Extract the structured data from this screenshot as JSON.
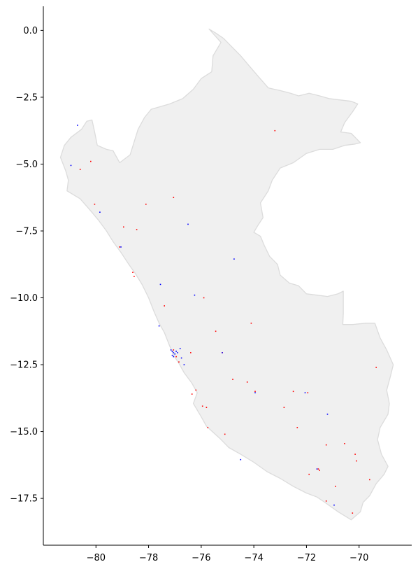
{
  "chart_data": {
    "type": "scatter",
    "title": "",
    "xlabel": "",
    "ylabel": "",
    "xlim": [
      -82.0,
      -68.0
    ],
    "ylim": [
      -19.25,
      0.9
    ],
    "x_ticks": [
      -80,
      -78,
      -76,
      -74,
      -72,
      -70
    ],
    "x_tick_labels": [
      "−80",
      "−78",
      "−76",
      "−74",
      "−72",
      "−70"
    ],
    "y_ticks": [
      0.0,
      -2.5,
      -5.0,
      -7.5,
      -10.0,
      -12.5,
      -15.0,
      -17.5
    ],
    "y_tick_labels": [
      "0.0",
      "−2.5",
      "−5.0",
      "−7.5",
      "−10.0",
      "−12.5",
      "−15.0",
      "−17.5"
    ],
    "grid": false,
    "colors": {
      "land_fill": "#f0f0f0",
      "land_edge": "#dcdcdc",
      "series_a": "#ff0000",
      "series_b": "#0000ff"
    },
    "outline": [
      [
        -75.7,
        0.05
      ],
      [
        -75.45,
        -0.1
      ],
      [
        -75.15,
        -0.3
      ],
      [
        -74.85,
        -0.6
      ],
      [
        -74.5,
        -0.95
      ],
      [
        -74.2,
        -1.3
      ],
      [
        -73.85,
        -1.7
      ],
      [
        -73.45,
        -2.15
      ],
      [
        -73.0,
        -2.25
      ],
      [
        -72.6,
        -2.35
      ],
      [
        -72.3,
        -2.45
      ],
      [
        -71.9,
        -2.35
      ],
      [
        -71.5,
        -2.45
      ],
      [
        -71.15,
        -2.55
      ],
      [
        -70.75,
        -2.6
      ],
      [
        -70.3,
        -2.65
      ],
      [
        -70.05,
        -2.75
      ],
      [
        -70.25,
        -3.05
      ],
      [
        -70.55,
        -3.45
      ],
      [
        -70.7,
        -3.8
      ],
      [
        -70.3,
        -3.85
      ],
      [
        -69.95,
        -4.2
      ],
      [
        -70.15,
        -4.25
      ],
      [
        -70.55,
        -4.3
      ],
      [
        -71.0,
        -4.45
      ],
      [
        -71.5,
        -4.45
      ],
      [
        -72.0,
        -4.6
      ],
      [
        -72.5,
        -4.95
      ],
      [
        -73.0,
        -5.15
      ],
      [
        -73.3,
        -5.6
      ],
      [
        -73.45,
        -6.0
      ],
      [
        -73.75,
        -6.45
      ],
      [
        -73.65,
        -7.0
      ],
      [
        -73.85,
        -7.3
      ],
      [
        -74.0,
        -7.55
      ],
      [
        -73.75,
        -7.7
      ],
      [
        -73.6,
        -8.05
      ],
      [
        -73.4,
        -8.45
      ],
      [
        -73.1,
        -8.75
      ],
      [
        -73.0,
        -9.15
      ],
      [
        -72.65,
        -9.45
      ],
      [
        -72.3,
        -9.55
      ],
      [
        -72.0,
        -9.85
      ],
      [
        -71.6,
        -9.9
      ],
      [
        -71.2,
        -9.95
      ],
      [
        -70.8,
        -9.85
      ],
      [
        -70.6,
        -9.75
      ],
      [
        -70.6,
        -10.1
      ],
      [
        -70.6,
        -10.6
      ],
      [
        -70.62,
        -11.0
      ],
      [
        -70.25,
        -11.0
      ],
      [
        -69.75,
        -10.95
      ],
      [
        -69.4,
        -10.95
      ],
      [
        -69.2,
        -11.5
      ],
      [
        -68.95,
        -11.95
      ],
      [
        -68.7,
        -12.5
      ],
      [
        -68.8,
        -12.9
      ],
      [
        -68.95,
        -13.45
      ],
      [
        -68.85,
        -13.95
      ],
      [
        -68.9,
        -14.35
      ],
      [
        -69.2,
        -14.85
      ],
      [
        -69.3,
        -15.3
      ],
      [
        -69.15,
        -15.85
      ],
      [
        -68.9,
        -16.3
      ],
      [
        -69.05,
        -16.6
      ],
      [
        -69.35,
        -16.95
      ],
      [
        -69.6,
        -17.4
      ],
      [
        -69.85,
        -17.65
      ],
      [
        -69.95,
        -18.0
      ],
      [
        -70.3,
        -18.3
      ],
      [
        -70.8,
        -18.0
      ],
      [
        -71.3,
        -17.65
      ],
      [
        -71.6,
        -17.45
      ],
      [
        -72.0,
        -17.3
      ],
      [
        -72.5,
        -17.05
      ],
      [
        -73.0,
        -16.75
      ],
      [
        -73.5,
        -16.5
      ],
      [
        -74.0,
        -16.15
      ],
      [
        -74.5,
        -15.85
      ],
      [
        -74.95,
        -15.6
      ],
      [
        -75.3,
        -15.25
      ],
      [
        -75.8,
        -14.8
      ],
      [
        -76.0,
        -14.45
      ],
      [
        -76.3,
        -13.95
      ],
      [
        -76.15,
        -13.55
      ],
      [
        -76.35,
        -13.2
      ],
      [
        -76.65,
        -12.8
      ],
      [
        -76.85,
        -12.45
      ],
      [
        -77.05,
        -12.15
      ],
      [
        -77.2,
        -11.8
      ],
      [
        -77.4,
        -11.3
      ],
      [
        -77.6,
        -10.95
      ],
      [
        -77.8,
        -10.5
      ],
      [
        -78.0,
        -10.0
      ],
      [
        -78.25,
        -9.5
      ],
      [
        -78.5,
        -9.1
      ],
      [
        -78.75,
        -8.75
      ],
      [
        -79.05,
        -8.3
      ],
      [
        -79.35,
        -7.9
      ],
      [
        -79.6,
        -7.5
      ],
      [
        -79.9,
        -7.1
      ],
      [
        -80.2,
        -6.75
      ],
      [
        -80.6,
        -6.3
      ],
      [
        -81.1,
        -6.0
      ],
      [
        -81.05,
        -5.6
      ],
      [
        -81.15,
        -5.25
      ],
      [
        -81.35,
        -4.75
      ],
      [
        -81.2,
        -4.3
      ],
      [
        -80.95,
        -4.0
      ],
      [
        -80.55,
        -3.7
      ],
      [
        -80.35,
        -3.4
      ],
      [
        -80.15,
        -3.35
      ],
      [
        -80.05,
        -3.8
      ],
      [
        -79.95,
        -4.3
      ],
      [
        -79.6,
        -4.45
      ],
      [
        -79.35,
        -4.5
      ],
      [
        -79.1,
        -4.95
      ],
      [
        -78.7,
        -4.65
      ],
      [
        -78.4,
        -3.7
      ],
      [
        -78.15,
        -3.25
      ],
      [
        -77.9,
        -2.95
      ],
      [
        -77.2,
        -2.75
      ],
      [
        -76.7,
        -2.55
      ],
      [
        -76.3,
        -2.2
      ],
      [
        -76.0,
        -1.8
      ],
      [
        -75.6,
        -1.55
      ],
      [
        -75.55,
        -0.95
      ],
      [
        -75.25,
        -0.45
      ],
      [
        -75.7,
        0.05
      ]
    ],
    "series": [
      {
        "color": "#ff0000",
        "points": [
          [
            -80.2,
            -4.9
          ],
          [
            -80.6,
            -5.2
          ],
          [
            -80.05,
            -6.5
          ],
          [
            -79.1,
            -8.1
          ],
          [
            -78.6,
            -9.05
          ],
          [
            -78.55,
            -9.2
          ],
          [
            -77.4,
            -10.3
          ],
          [
            -77.05,
            -11.95
          ],
          [
            -76.95,
            -12.2
          ],
          [
            -76.85,
            -12.4
          ],
          [
            -76.35,
            -13.6
          ],
          [
            -75.95,
            -14.05
          ],
          [
            -75.8,
            -14.1
          ],
          [
            -75.75,
            -14.85
          ],
          [
            -75.2,
            -12.05
          ],
          [
            -74.25,
            -13.15
          ],
          [
            -73.95,
            -13.5
          ],
          [
            -72.5,
            -13.5
          ],
          [
            -71.95,
            -13.55
          ],
          [
            -71.55,
            -16.4
          ],
          [
            -71.5,
            -16.45
          ],
          [
            -70.55,
            -15.45
          ],
          [
            -70.15,
            -15.85
          ],
          [
            -70.25,
            -18.05
          ],
          [
            -70.1,
            -16.1
          ],
          [
            -71.25,
            -17.6
          ],
          [
            -70.9,
            -17.05
          ],
          [
            -73.2,
            -3.75
          ],
          [
            -78.1,
            -6.5
          ],
          [
            -78.95,
            -7.35
          ],
          [
            -78.45,
            -7.45
          ],
          [
            -77.05,
            -6.25
          ],
          [
            -74.8,
            -13.05
          ],
          [
            -72.85,
            -14.1
          ],
          [
            -72.35,
            -14.85
          ],
          [
            -74.1,
            -10.95
          ],
          [
            -75.9,
            -10.0
          ],
          [
            -75.45,
            -11.25
          ],
          [
            -76.4,
            -12.05
          ],
          [
            -71.25,
            -15.5
          ],
          [
            -69.35,
            -12.6
          ],
          [
            -69.6,
            -16.8
          ],
          [
            -71.9,
            -16.6
          ],
          [
            -75.1,
            -15.1
          ],
          [
            -76.2,
            -13.45
          ]
        ]
      },
      {
        "color": "#0000ff",
        "points": [
          [
            -77.05,
            -12.05
          ],
          [
            -77.1,
            -12.0
          ],
          [
            -77.0,
            -12.1
          ],
          [
            -77.15,
            -11.95
          ],
          [
            -76.95,
            -12.0
          ],
          [
            -76.9,
            -12.05
          ],
          [
            -77.05,
            -12.2
          ],
          [
            -77.1,
            -12.15
          ],
          [
            -76.8,
            -11.9
          ],
          [
            -76.65,
            -12.5
          ],
          [
            -76.75,
            -12.25
          ],
          [
            -79.85,
            -6.8
          ],
          [
            -79.05,
            -8.1
          ],
          [
            -80.7,
            -3.55
          ],
          [
            -77.55,
            -9.5
          ],
          [
            -74.75,
            -8.55
          ],
          [
            -72.05,
            -13.55
          ],
          [
            -71.6,
            -16.4
          ],
          [
            -70.95,
            -17.75
          ],
          [
            -76.5,
            -7.25
          ],
          [
            -75.2,
            -12.05
          ],
          [
            -73.95,
            -13.55
          ],
          [
            -74.5,
            -16.05
          ],
          [
            -71.2,
            -14.35
          ],
          [
            -80.95,
            -5.05
          ],
          [
            -77.6,
            -11.05
          ],
          [
            -76.25,
            -9.9
          ]
        ]
      }
    ]
  }
}
